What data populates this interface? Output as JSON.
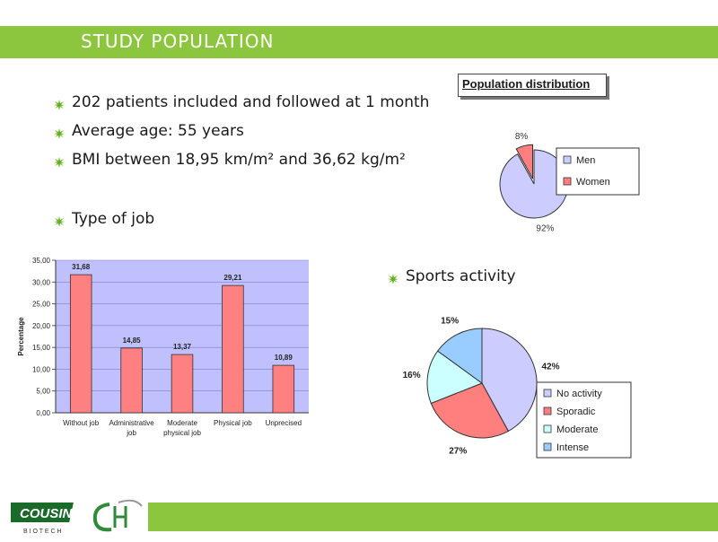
{
  "header": {
    "title": "STUDY POPULATION"
  },
  "bullets": [
    "202 patients included and followed at 1 month",
    "Average age: 55 years",
    "BMI between 18,95 km/m² and 36,62 kg/m²",
    "Type of job",
    "Sports activity"
  ],
  "bullet_icon": "green-starburst-bullet-icon",
  "logos": {
    "cousin_text": "COUSIN",
    "cousin_sub": "B I O T E C H",
    "cousin_icon": "cousin-biotech-logo-icon",
    "ch_icon": "ch-logo-icon"
  },
  "colors": {
    "accent_green": "#8cc63f",
    "bar_fill": "#ff8080",
    "plot_bg": "#c0c0ff"
  },
  "chart_data": [
    {
      "type": "pie",
      "title": "Population distribution",
      "categories": [
        "Men",
        "Women"
      ],
      "values": [
        92,
        8
      ],
      "labels": [
        "92%",
        "8%"
      ],
      "colors": [
        "#ccccff",
        "#ff7f7f"
      ],
      "legend": "right"
    },
    {
      "type": "bar",
      "categories": [
        "Without job",
        "Administrative job",
        "Moderate physical job",
        "Physical job",
        "Unprecised"
      ],
      "category_lines": [
        [
          "Without job"
        ],
        [
          "Administrative",
          "job"
        ],
        [
          "Moderate",
          "physical job"
        ],
        [
          "Physical job"
        ],
        [
          "Unprecised"
        ]
      ],
      "values": [
        31.68,
        14.85,
        13.37,
        29.21,
        10.89
      ],
      "value_labels": [
        "31,68",
        "14,85",
        "13,37",
        "29,21",
        "10,89"
      ],
      "ylabel": "Percentage",
      "ylim": [
        0,
        35
      ],
      "yticks": [
        "0,00",
        "5,00",
        "10,00",
        "15,00",
        "20,00",
        "25,00",
        "30,00",
        "35,00"
      ],
      "grid": true
    },
    {
      "type": "pie",
      "categories": [
        "No activity",
        "Sporadic",
        "Moderate",
        "Intense"
      ],
      "values": [
        42,
        27,
        16,
        15
      ],
      "labels": [
        "42%",
        "27%",
        "16%",
        "15%"
      ],
      "colors": [
        "#ccccff",
        "#ff7f7f",
        "#ccffff",
        "#99ccff"
      ],
      "legend": "bottom-right"
    }
  ]
}
